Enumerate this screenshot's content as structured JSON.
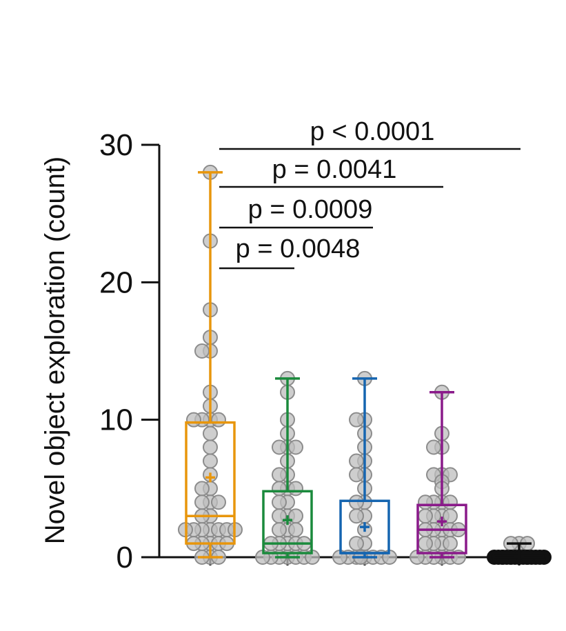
{
  "chart_data": {
    "type": "box",
    "ylabel": "Novel object exploration (count)",
    "xlabel": "",
    "ylim": [
      0,
      30
    ],
    "yticks": [
      0,
      10,
      20,
      30
    ],
    "groups": [
      {
        "color": "#e8960c",
        "whisker_min": 0,
        "q1": 1,
        "median": 3,
        "q3": 9.8,
        "whisker_max": 28,
        "mean": 5.8,
        "points": [
          28,
          23,
          18,
          16,
          15,
          15,
          12,
          11,
          10,
          10,
          10,
          10,
          9,
          8,
          7,
          6,
          5,
          5,
          4,
          4,
          4,
          3,
          3,
          2,
          2,
          2,
          2,
          2,
          2,
          2,
          1,
          1,
          1,
          1,
          1,
          0,
          0,
          0
        ]
      },
      {
        "color": "#1a8a3c",
        "whisker_min": 0,
        "q1": 0.3,
        "median": 1,
        "q3": 4.8,
        "whisker_max": 13,
        "mean": 2.7,
        "points": [
          13,
          12,
          10,
          9,
          8,
          8,
          8,
          7,
          6,
          6,
          5,
          5,
          5,
          4,
          4,
          3,
          3,
          3,
          2,
          2,
          2,
          1,
          1,
          1,
          1,
          1,
          0,
          0,
          0,
          0,
          0,
          0,
          0
        ]
      },
      {
        "color": "#1565b0",
        "whisker_min": 0,
        "q1": 0.3,
        "median": 0.3,
        "q3": 4.1,
        "whisker_max": 13,
        "mean": 2.2,
        "points": [
          13,
          10,
          10,
          9,
          8,
          7,
          7,
          6,
          6,
          5,
          4,
          4,
          3,
          3,
          2,
          1,
          1,
          0,
          0,
          0,
          0,
          0,
          0,
          0,
          0
        ]
      },
      {
        "color": "#8a1a8a",
        "whisker_min": 0,
        "q1": 0.3,
        "median": 2,
        "q3": 3.8,
        "whisker_max": 12,
        "mean": 2.6,
        "points": [
          12,
          9,
          8,
          8,
          6,
          6,
          6,
          5.5,
          5,
          4,
          4,
          4,
          4,
          3,
          3,
          3,
          3,
          2,
          2,
          2,
          2,
          2,
          1,
          1,
          1,
          1,
          0,
          0,
          0,
          0,
          0,
          0
        ]
      },
      {
        "color": "#111111",
        "whisker_min": 0,
        "q1": 0,
        "median": 0,
        "q3": 0.1,
        "whisker_max": 1,
        "mean": 0.1,
        "points": [
          1,
          1,
          1,
          0,
          0,
          0,
          0,
          0,
          0,
          0,
          0,
          0,
          0,
          0,
          0,
          0,
          0,
          0,
          0,
          0
        ]
      }
    ],
    "comparisons": [
      {
        "from": 0,
        "to": 4,
        "label": "p < 0.0001"
      },
      {
        "from": 0,
        "to": 3,
        "label": "p = 0.0041"
      },
      {
        "from": 0,
        "to": 2,
        "label": "p = 0.0009"
      },
      {
        "from": 0,
        "to": 1,
        "label": "p = 0.0048"
      }
    ],
    "point_fill": "#bdbdbd",
    "point_stroke": "#8c8c8c",
    "axis_color": "#111111"
  }
}
